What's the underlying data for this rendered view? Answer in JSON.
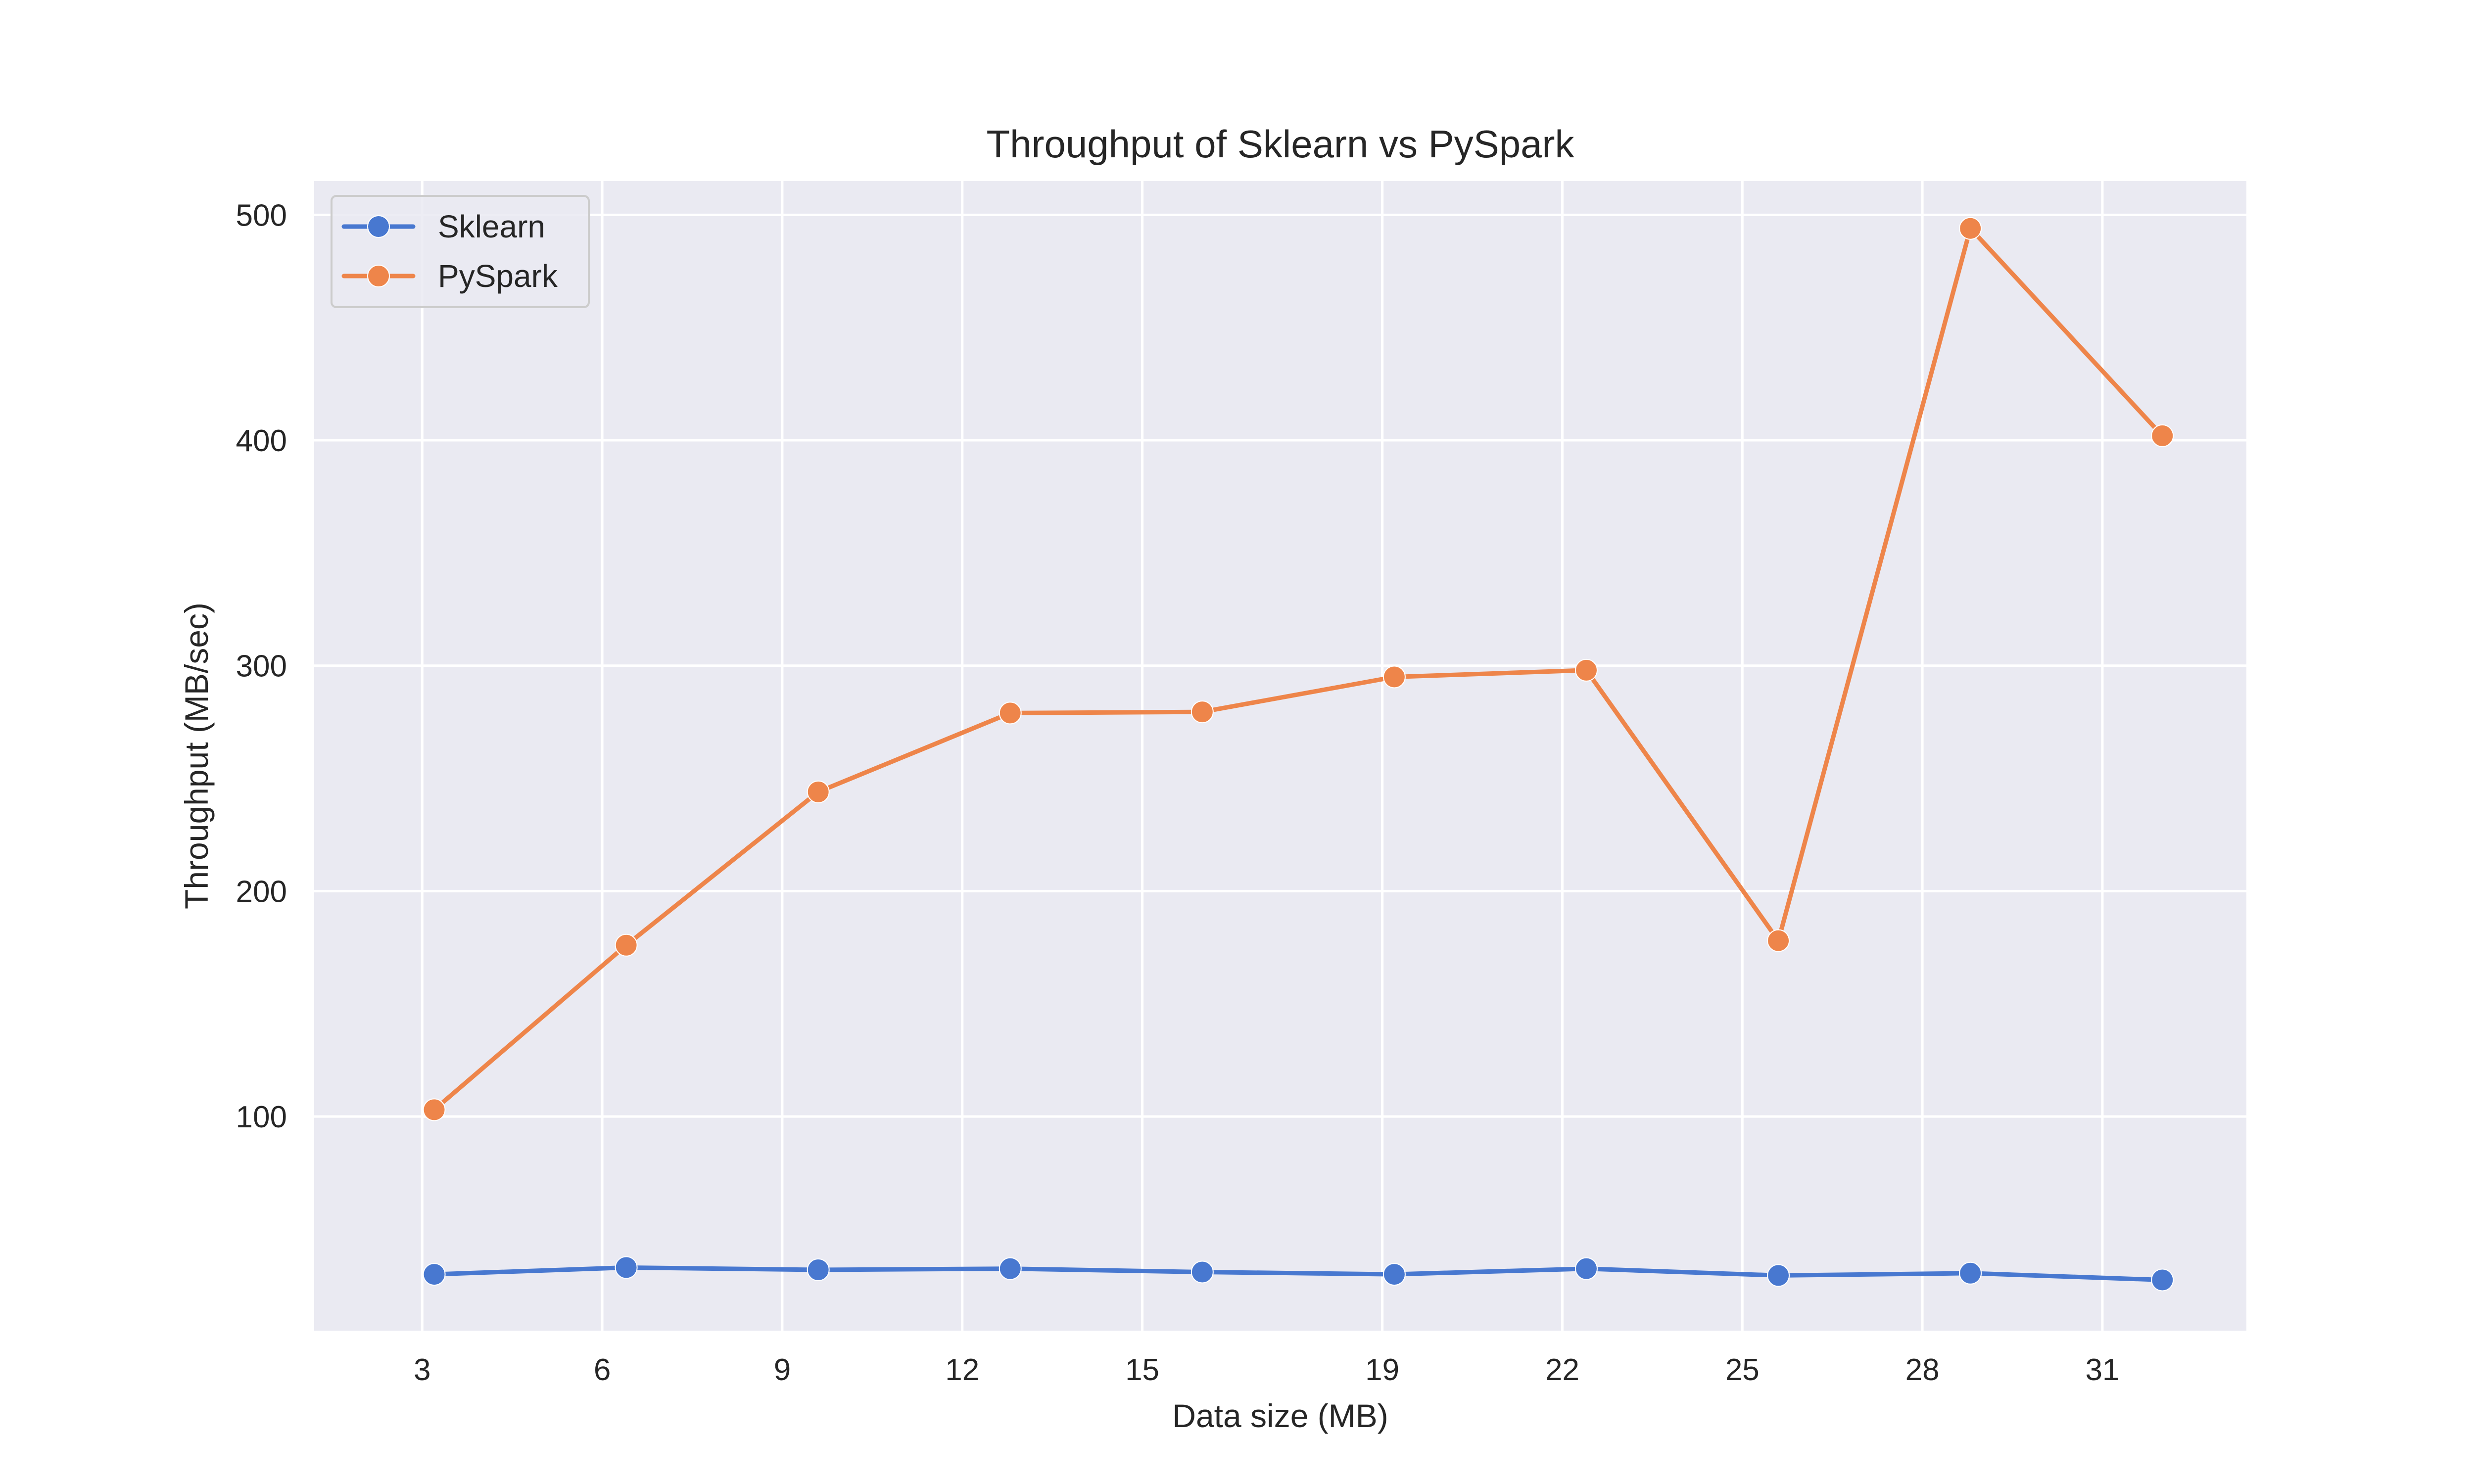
{
  "chart_data": {
    "type": "line",
    "title": "Throughput of Sklearn vs PySpark",
    "xlabel": "Data size (MB)",
    "ylabel": "Throughput (MB/sec)",
    "x": [
      3.2,
      6.4,
      9.6,
      12.8,
      16.0,
      19.2,
      22.4,
      25.6,
      28.8,
      32.0
    ],
    "xlim": [
      1.2,
      33.4
    ],
    "ylim": [
      5,
      515
    ],
    "xticks": [
      3,
      6,
      9,
      12,
      15,
      19,
      22,
      25,
      28,
      31
    ],
    "xtick_labels": [
      "3",
      "6",
      "9",
      "12",
      "15",
      "19",
      "22",
      "25",
      "28",
      "31"
    ],
    "yticks": [
      100,
      200,
      300,
      400,
      500
    ],
    "ytick_labels": [
      "100",
      "200",
      "300",
      "400",
      "500"
    ],
    "grid": true,
    "legend_position": "top-left",
    "series": [
      {
        "name": "Sklearn",
        "color": "#4878d0",
        "values": [
          30,
          33,
          32,
          32.5,
          31,
          30,
          32.5,
          29.5,
          30.5,
          27.5
        ]
      },
      {
        "name": "PySpark",
        "color": "#ee854a",
        "values": [
          103,
          176,
          244,
          279,
          279.5,
          295,
          298,
          178,
          494,
          402
        ]
      }
    ],
    "style": {
      "background": "#ffffff",
      "plot_background": "#eaeaf2",
      "grid_color": "#ffffff",
      "text_color": "#262626"
    }
  }
}
